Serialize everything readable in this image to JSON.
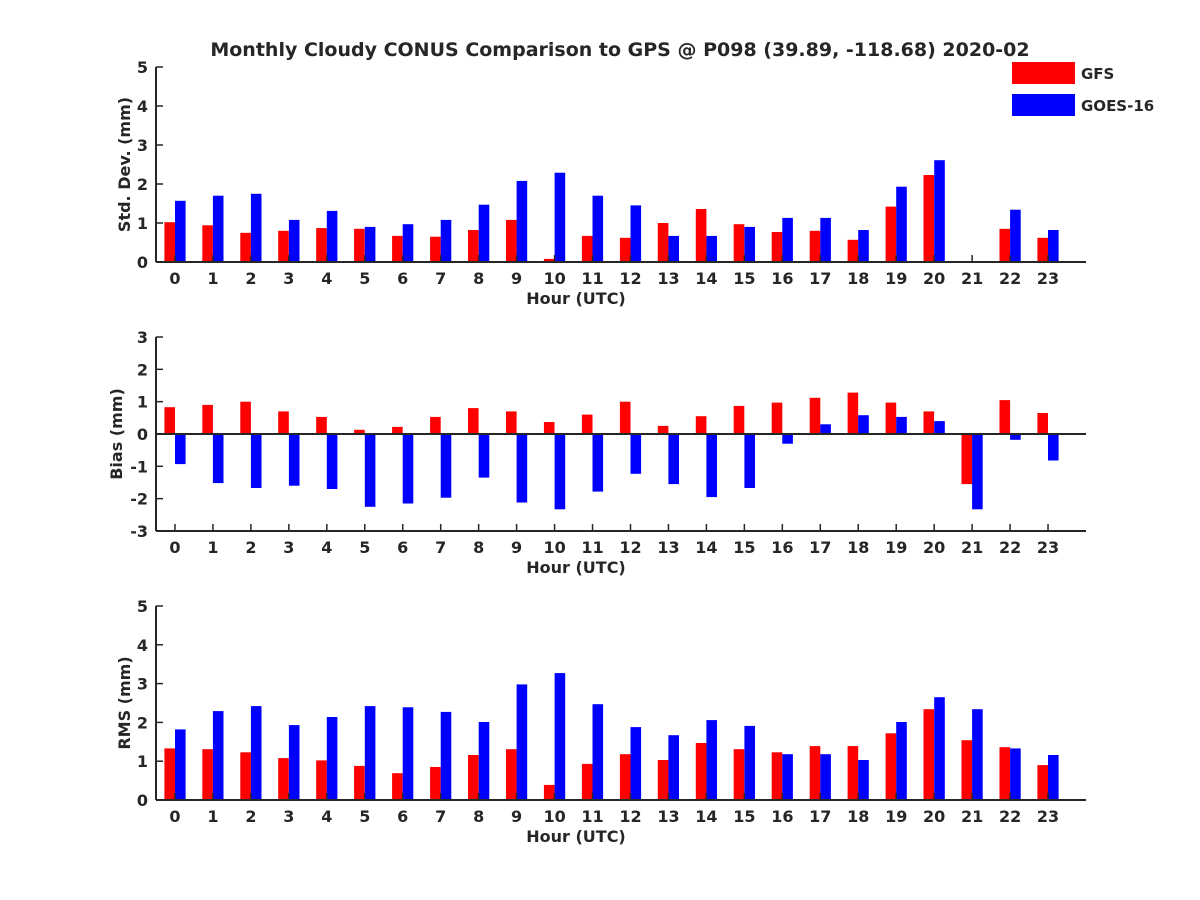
{
  "figure": {
    "title": "Monthly Cloudy CONUS Comparison to GPS @ P098 (39.89, -118.68) 2020-02",
    "colors": {
      "GFS": "#ff0000",
      "GOES-16": "#0000ff",
      "axis": "#262626"
    }
  },
  "chart_data": [
    {
      "type": "bar",
      "title": "Monthly Cloudy CONUS Comparison to GPS @ P098 (39.89, -118.68) 2020-02",
      "xlabel": "Hour (UTC)",
      "ylabel": "Std. Dev. (mm)",
      "ylim": [
        0,
        5
      ],
      "yticks": [
        0,
        1,
        2,
        3,
        4,
        5
      ],
      "legend_position": "top-right",
      "categories": [
        "0",
        "1",
        "2",
        "3",
        "4",
        "5",
        "6",
        "7",
        "8",
        "9",
        "10",
        "11",
        "12",
        "13",
        "14",
        "15",
        "16",
        "17",
        "18",
        "19",
        "20",
        "21",
        "22",
        "23"
      ],
      "series": [
        {
          "name": "GFS",
          "color": "#ff0000",
          "values": [
            1.02,
            0.94,
            0.75,
            0.8,
            0.87,
            0.85,
            0.67,
            0.65,
            0.82,
            1.08,
            0.08,
            0.67,
            0.62,
            1.0,
            1.36,
            0.97,
            0.77,
            0.8,
            0.57,
            1.42,
            2.23,
            0,
            0.85,
            0.62
          ]
        },
        {
          "name": "GOES-16",
          "color": "#0000ff",
          "values": [
            1.57,
            1.7,
            1.75,
            1.08,
            1.31,
            0.9,
            0.97,
            1.08,
            1.47,
            2.08,
            2.29,
            1.7,
            1.45,
            0.67,
            0.67,
            0.9,
            1.13,
            1.13,
            0.82,
            1.93,
            2.61,
            0,
            1.34,
            0.82
          ]
        }
      ]
    },
    {
      "type": "bar",
      "xlabel": "Hour (UTC)",
      "ylabel": "Bias (mm)",
      "ylim": [
        -3,
        3
      ],
      "yticks": [
        -3,
        -2,
        -1,
        0,
        1,
        2,
        3
      ],
      "categories": [
        "0",
        "1",
        "2",
        "3",
        "4",
        "5",
        "6",
        "7",
        "8",
        "9",
        "10",
        "11",
        "12",
        "13",
        "14",
        "15",
        "16",
        "17",
        "18",
        "19",
        "20",
        "21",
        "22",
        "23"
      ],
      "series": [
        {
          "name": "GFS",
          "color": "#ff0000",
          "values": [
            0.83,
            0.9,
            1.0,
            0.7,
            0.53,
            0.13,
            0.22,
            0.53,
            0.8,
            0.7,
            0.37,
            0.6,
            1.0,
            0.25,
            0.55,
            0.87,
            0.97,
            1.12,
            1.28,
            0.97,
            0.7,
            -1.55,
            1.05,
            0.65
          ]
        },
        {
          "name": "GOES-16",
          "color": "#0000ff",
          "values": [
            -0.93,
            -1.52,
            -1.67,
            -1.6,
            -1.7,
            -2.25,
            -2.15,
            -1.97,
            -1.35,
            -2.12,
            -2.33,
            -1.78,
            -1.23,
            -1.55,
            -1.95,
            -1.67,
            -0.3,
            0.3,
            0.58,
            0.53,
            0.4,
            -2.33,
            -0.18,
            -0.82
          ]
        }
      ]
    },
    {
      "type": "bar",
      "xlabel": "Hour (UTC)",
      "ylabel": "RMS (mm)",
      "ylim": [
        0,
        5
      ],
      "yticks": [
        0,
        1,
        2,
        3,
        4,
        5
      ],
      "categories": [
        "0",
        "1",
        "2",
        "3",
        "4",
        "5",
        "6",
        "7",
        "8",
        "9",
        "10",
        "11",
        "12",
        "13",
        "14",
        "15",
        "16",
        "17",
        "18",
        "19",
        "20",
        "21",
        "22",
        "23"
      ],
      "series": [
        {
          "name": "GFS",
          "color": "#ff0000",
          "values": [
            1.33,
            1.31,
            1.23,
            1.08,
            1.02,
            0.88,
            0.69,
            0.85,
            1.16,
            1.31,
            0.39,
            0.93,
            1.18,
            1.03,
            1.47,
            1.31,
            1.23,
            1.39,
            1.39,
            1.72,
            2.34,
            1.54,
            1.36,
            0.9
          ]
        },
        {
          "name": "GOES-16",
          "color": "#0000ff",
          "values": [
            1.82,
            2.29,
            2.42,
            1.93,
            2.14,
            2.42,
            2.39,
            2.27,
            2.01,
            2.98,
            3.27,
            2.47,
            1.88,
            1.67,
            2.06,
            1.91,
            1.18,
            1.18,
            1.03,
            2.01,
            2.65,
            2.34,
            1.33,
            1.16
          ]
        }
      ]
    }
  ]
}
